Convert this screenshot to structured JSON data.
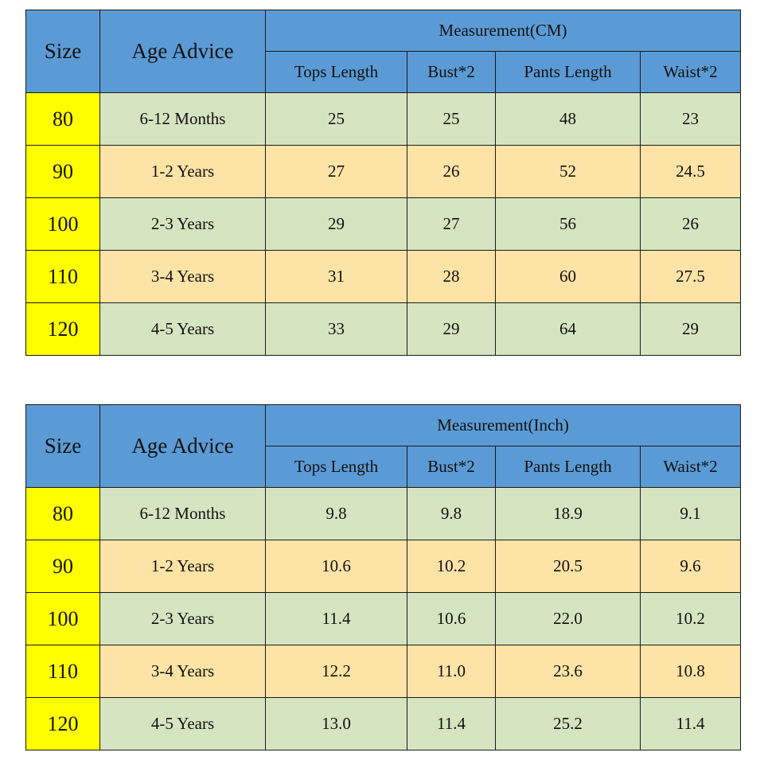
{
  "headers": {
    "size": "Size",
    "age_advice": "Age Advice",
    "columns": [
      "Tops Length",
      "Bust*2",
      "Pants Length",
      "Waist*2"
    ]
  },
  "colors": {
    "header_blue": "#5b9bd5",
    "size_yellow": "#ffff00",
    "row_green": "#d6e5c1",
    "row_orange": "#fde3a6"
  },
  "tables": [
    {
      "measurement_title": "Measurement(CM)",
      "rows": [
        {
          "size": "80",
          "age": "6-12 Months",
          "tops": "25",
          "bust": "25",
          "pants": "48",
          "waist": "23"
        },
        {
          "size": "90",
          "age": "1-2 Years",
          "tops": "27",
          "bust": "26",
          "pants": "52",
          "waist": "24.5"
        },
        {
          "size": "100",
          "age": "2-3 Years",
          "tops": "29",
          "bust": "27",
          "pants": "56",
          "waist": "26"
        },
        {
          "size": "110",
          "age": "3-4 Years",
          "tops": "31",
          "bust": "28",
          "pants": "60",
          "waist": "27.5"
        },
        {
          "size": "120",
          "age": "4-5 Years",
          "tops": "33",
          "bust": "29",
          "pants": "64",
          "waist": "29"
        }
      ]
    },
    {
      "measurement_title": "Measurement(Inch)",
      "rows": [
        {
          "size": "80",
          "age": "6-12 Months",
          "tops": "9.8",
          "bust": "9.8",
          "pants": "18.9",
          "waist": "9.1"
        },
        {
          "size": "90",
          "age": "1-2 Years",
          "tops": "10.6",
          "bust": "10.2",
          "pants": "20.5",
          "waist": "9.6"
        },
        {
          "size": "100",
          "age": "2-3 Years",
          "tops": "11.4",
          "bust": "10.6",
          "pants": "22.0",
          "waist": "10.2"
        },
        {
          "size": "110",
          "age": "3-4 Years",
          "tops": "12.2",
          "bust": "11.0",
          "pants": "23.6",
          "waist": "10.8"
        },
        {
          "size": "120",
          "age": "4-5 Years",
          "tops": "13.0",
          "bust": "11.4",
          "pants": "25.2",
          "waist": "11.4"
        }
      ]
    }
  ]
}
